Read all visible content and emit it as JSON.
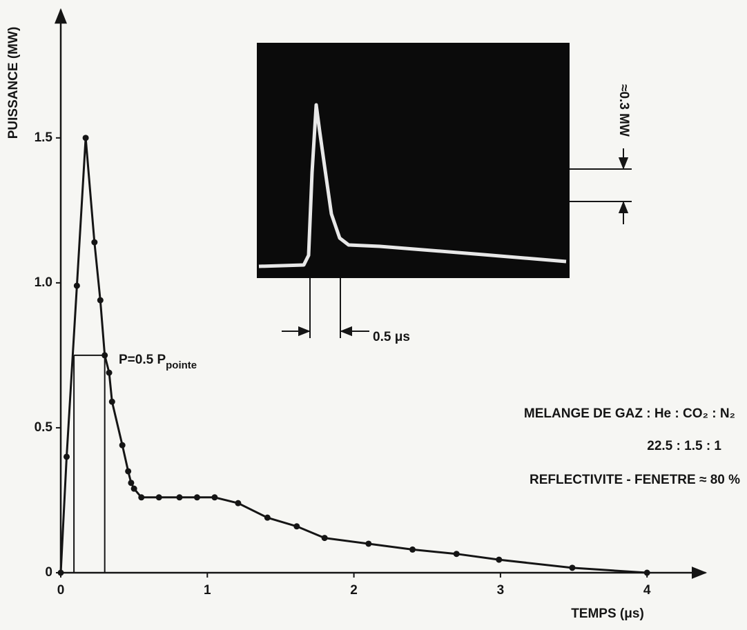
{
  "chart_data": {
    "type": "line",
    "y_label": "PUISSANCE (MW)",
    "x_label": "TEMPS (μs)",
    "xlim": [
      0,
      4.39
    ],
    "ylim": [
      0,
      1.94
    ],
    "xticks": [
      0,
      1,
      2,
      3,
      4
    ],
    "yticks": [
      0,
      0.5,
      {
        "value": 1,
        "label": "1.0"
      },
      1.5
    ],
    "grid": false,
    "x": [
      0,
      0.04,
      0.11,
      0.17,
      0.23,
      0.27,
      0.3,
      0.33,
      0.35,
      0.42,
      0.46,
      0.48,
      0.5,
      0.55,
      0.67,
      0.81,
      0.93,
      1.05,
      1.21,
      1.41,
      1.61,
      1.8,
      2.1,
      2.4,
      2.7,
      2.99,
      3.49,
      4.0
    ],
    "series": [
      {
        "color": "#151515",
        "values": [
          0,
          0.4,
          0.99,
          1.5,
          1.14,
          0.94,
          0.75,
          0.69,
          0.59,
          0.44,
          0.35,
          0.31,
          0.29,
          0.26,
          0.26,
          0.26,
          0.26,
          0.26,
          0.24,
          0.19,
          0.16,
          0.12,
          0.1,
          0.08,
          0.065,
          0.045,
          0.017,
          0
        ]
      }
    ],
    "half_max": {
      "level": 0.75,
      "x": [
        0.09,
        0.3
      ],
      "text": "P=0.5 P",
      "subscript": "pointe"
    },
    "inset": {
      "vertical_scale": "≈0.3 MW",
      "horizontal_scale": "0.5 μs"
    },
    "annotations": [
      "MELANGE DE GAZ : He : CO₂ : N₂",
      "22.5 : 1.5 : 1",
      "REFLECTIVITE - FENETRE ≈ 80 %"
    ]
  }
}
